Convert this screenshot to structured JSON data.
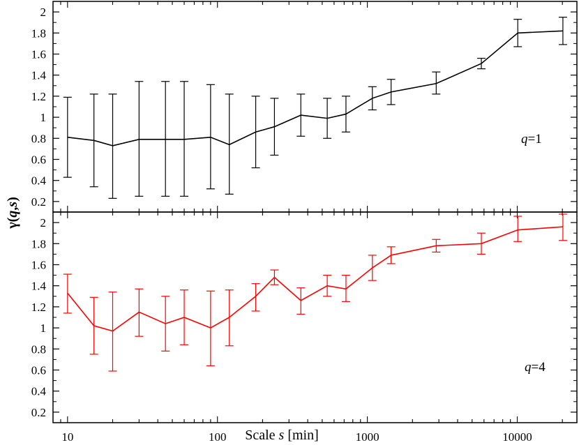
{
  "chart_data": [
    {
      "type": "line",
      "x_scale": "log",
      "xlim": [
        8,
        25000
      ],
      "ylim": [
        0.1,
        2.1
      ],
      "yticks": [
        "0.2",
        "0.4",
        "0.6",
        "0.8",
        "1",
        "1.2",
        "1.4",
        "1.6",
        "1.8",
        "2"
      ],
      "grid": false,
      "annotation": {
        "prefix": "q",
        "suffix": "=1"
      },
      "series": [
        {
          "color": "#000000",
          "x": [
            10,
            15,
            20,
            30,
            45,
            60,
            90,
            120,
            180,
            240,
            360,
            540,
            720,
            1080,
            1440,
            2880,
            5760,
            10080,
            20160
          ],
          "y": [
            0.81,
            0.78,
            0.73,
            0.79,
            0.79,
            0.79,
            0.81,
            0.74,
            0.86,
            0.91,
            1.02,
            0.99,
            1.03,
            1.18,
            1.24,
            1.32,
            1.51,
            1.8,
            1.82
          ],
          "y_low": [
            0.43,
            0.34,
            0.23,
            0.25,
            0.25,
            0.25,
            0.32,
            0.27,
            0.52,
            0.64,
            0.82,
            0.8,
            0.86,
            1.07,
            1.12,
            1.22,
            1.46,
            1.67,
            1.69
          ],
          "y_high": [
            1.19,
            1.22,
            1.22,
            1.34,
            1.34,
            1.34,
            1.31,
            1.22,
            1.2,
            1.18,
            1.22,
            1.18,
            1.2,
            1.29,
            1.36,
            1.43,
            1.56,
            1.93,
            1.95
          ]
        }
      ]
    },
    {
      "type": "line",
      "x_scale": "log",
      "xlim": [
        8,
        25000
      ],
      "ylim": [
        0.1,
        2.1
      ],
      "yticks": [
        "0.2",
        "0.4",
        "0.6",
        "0.8",
        "1",
        "1.2",
        "1.4",
        "1.6",
        "1.8",
        "2"
      ],
      "xticks": [
        "10",
        "100",
        "1000",
        "10000"
      ],
      "grid": false,
      "annotation": {
        "prefix": "q",
        "suffix": "=4"
      },
      "series": [
        {
          "color": "#ff0000",
          "x": [
            10,
            15,
            20,
            30,
            45,
            60,
            90,
            120,
            180,
            240,
            360,
            540,
            720,
            1080,
            1440,
            2880,
            5760,
            10080,
            20160
          ],
          "y": [
            1.33,
            1.02,
            0.97,
            1.15,
            1.04,
            1.1,
            1.0,
            1.1,
            1.3,
            1.48,
            1.26,
            1.4,
            1.37,
            1.57,
            1.69,
            1.78,
            1.8,
            1.93,
            1.96
          ],
          "y_low": [
            1.14,
            0.75,
            0.59,
            0.92,
            0.78,
            0.84,
            0.64,
            0.83,
            1.16,
            1.41,
            1.13,
            1.3,
            1.25,
            1.45,
            1.61,
            1.72,
            1.7,
            1.82,
            1.83
          ],
          "y_high": [
            1.51,
            1.29,
            1.34,
            1.37,
            1.3,
            1.36,
            1.35,
            1.36,
            1.42,
            1.55,
            1.38,
            1.5,
            1.5,
            1.69,
            1.77,
            1.84,
            1.9,
            2.06,
            2.08
          ]
        }
      ]
    }
  ],
  "ylabel": {
    "gamma": "γ",
    "paren_open": "(",
    "q": "q",
    "comma": ",",
    "s": "s",
    "paren_close": ")"
  },
  "xlabel": {
    "prefix": "Scale ",
    "var": "s",
    "suffix": " [min]"
  }
}
